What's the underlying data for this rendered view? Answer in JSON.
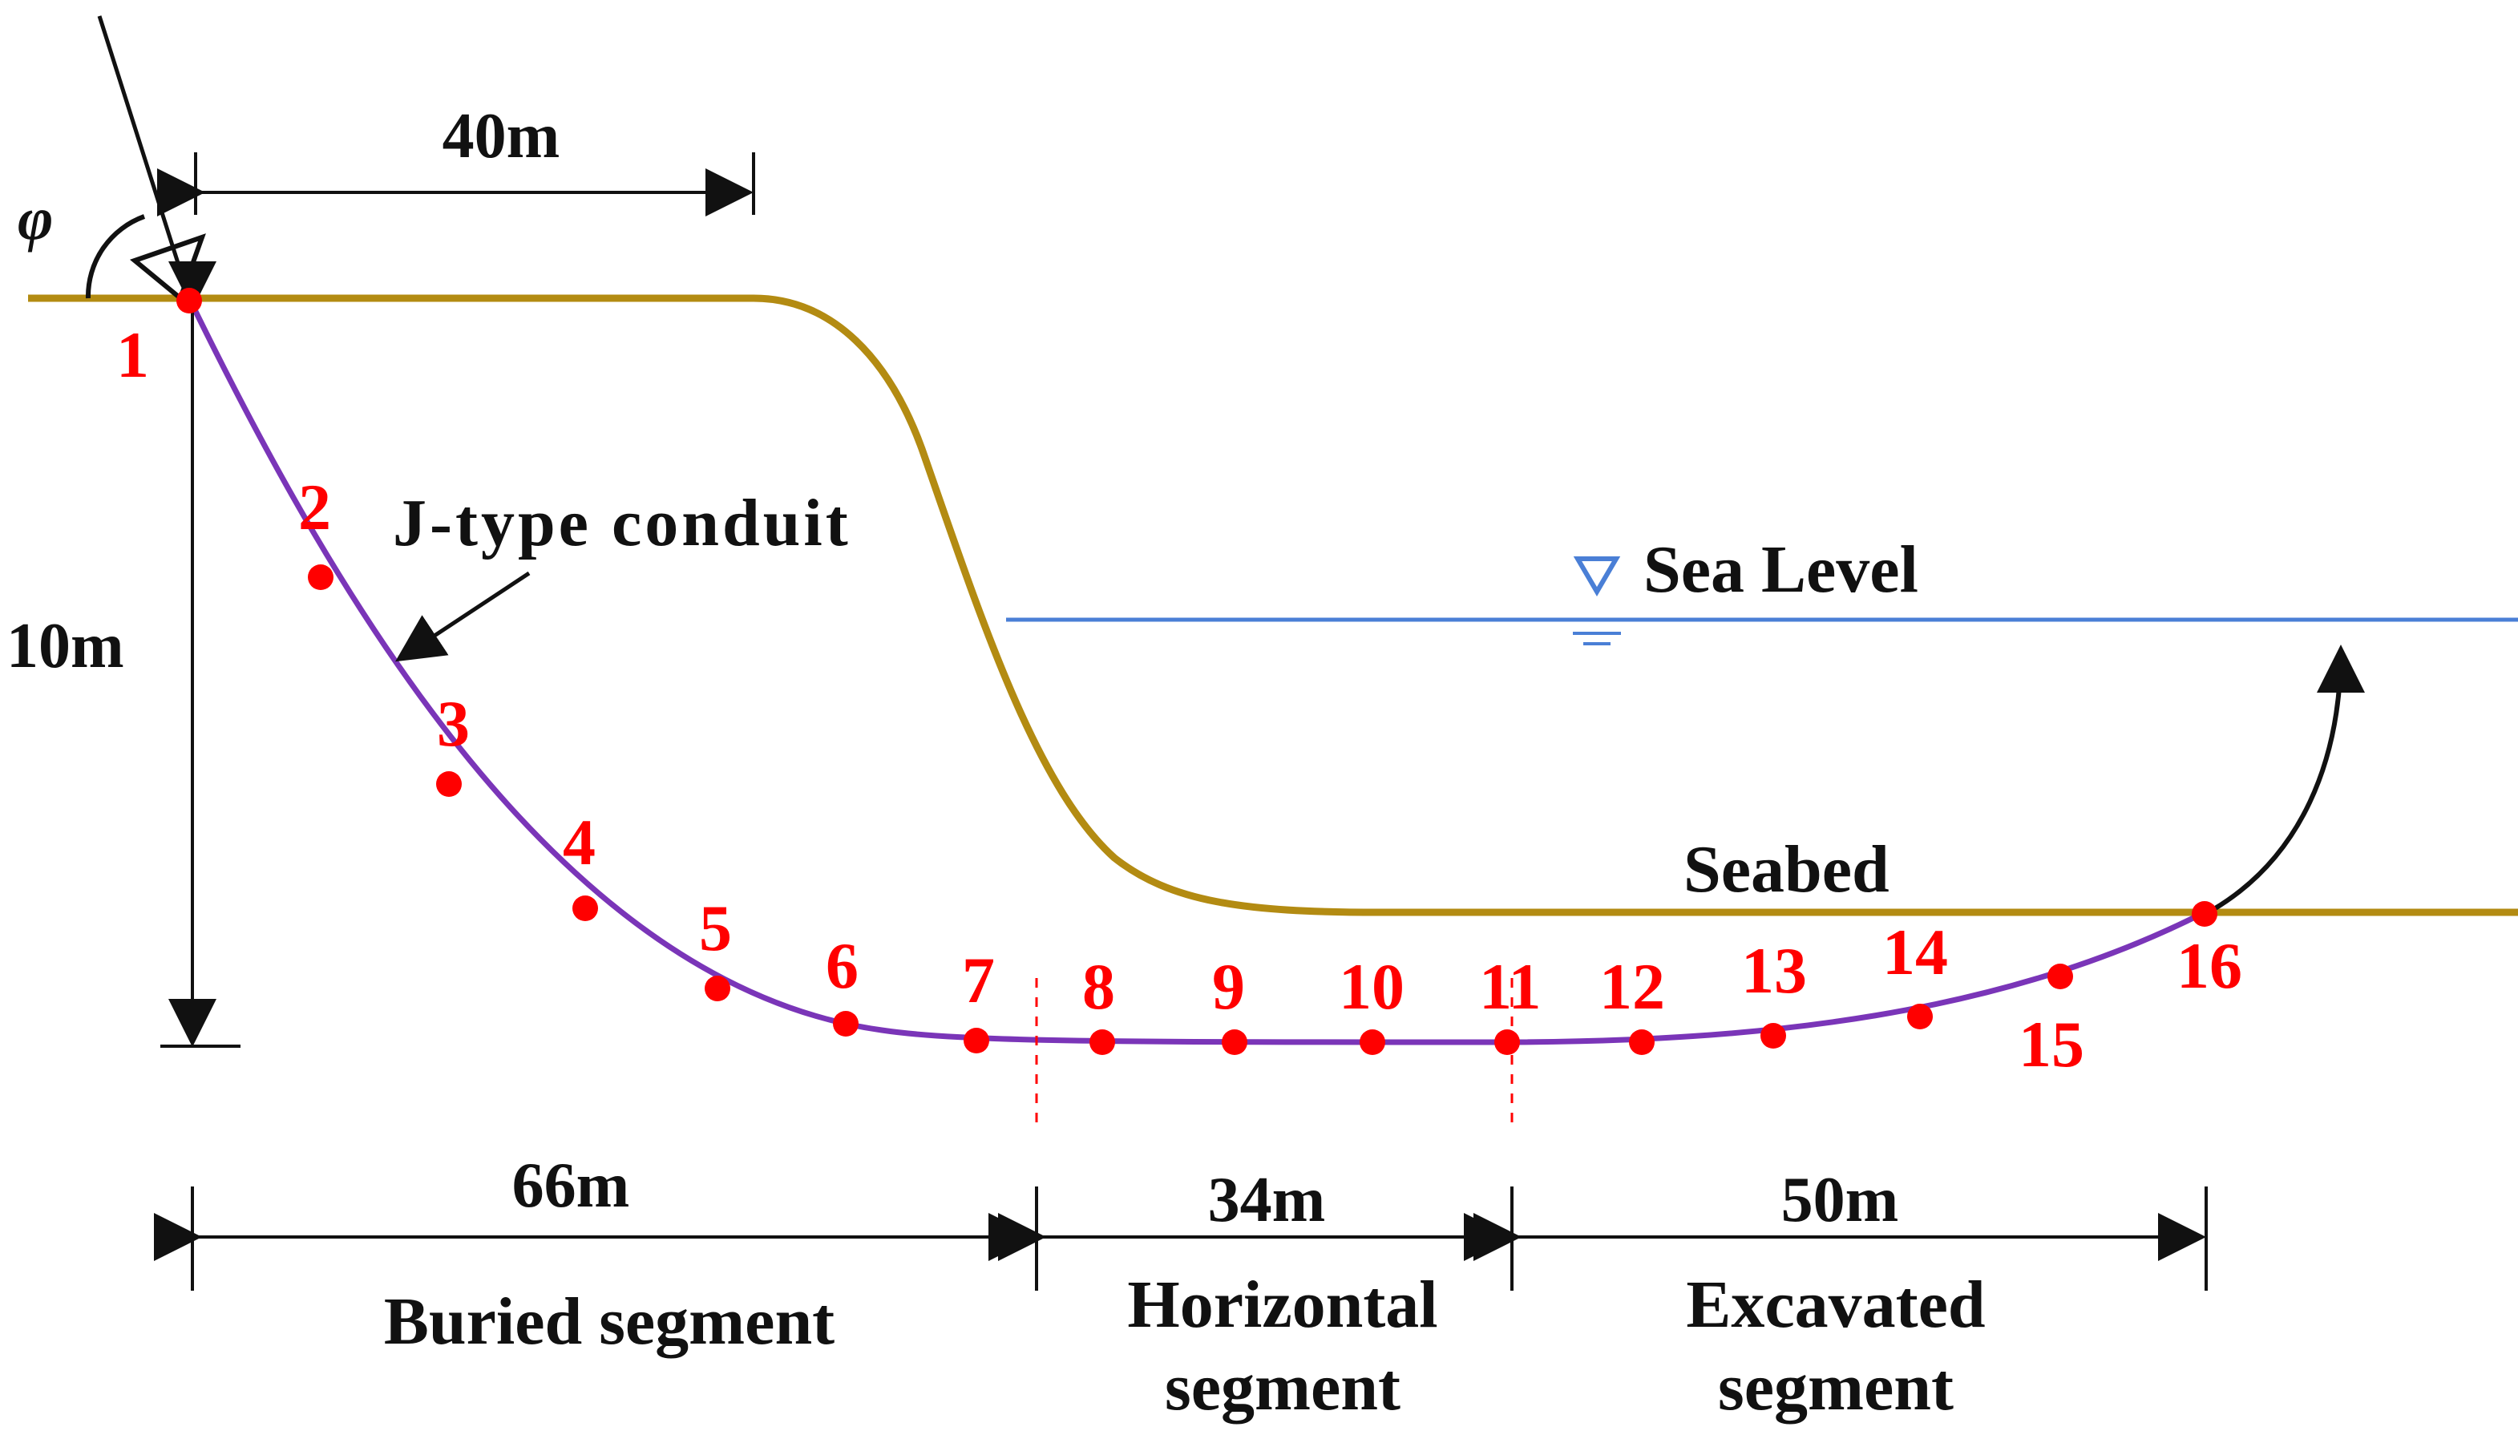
{
  "colors": {
    "ground": "#b38b12",
    "conduit": "#7a35b8",
    "sea": "#4a7fd6",
    "marker": "#ff0000",
    "ink": "#111111"
  },
  "labels": {
    "angle": "φ",
    "top_width": "40m",
    "depth": "10m",
    "conduit": "J-type conduit",
    "sea_level": "Sea Level",
    "seabed": "Seabed"
  },
  "dimensions": {
    "buried": "66m",
    "horizontal": "34m",
    "excavated": "50m"
  },
  "segments": {
    "buried": [
      "Buried segment"
    ],
    "horizontal": [
      "Horizontal",
      "segment"
    ],
    "excavated": [
      "Excavated",
      "segment"
    ]
  },
  "points": [
    "1",
    "2",
    "3",
    "4",
    "5",
    "6",
    "7",
    "8",
    "9",
    "10",
    "11",
    "12",
    "13",
    "14",
    "15",
    "16"
  ]
}
